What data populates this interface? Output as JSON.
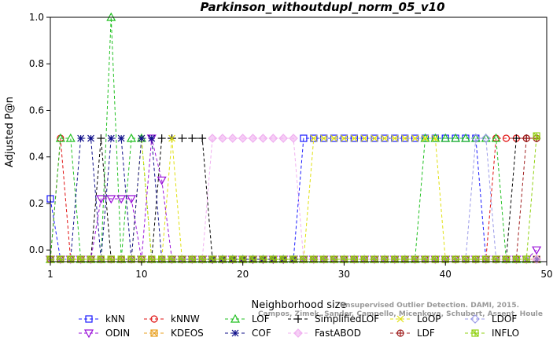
{
  "chart_data": {
    "type": "line",
    "title": "Parkinson_withoutdupl_norm_05_v10",
    "xlabel": "Neighborhood size",
    "ylabel": "Adjusted P@n",
    "xlim": [
      1,
      50
    ],
    "ylim": [
      -0.05,
      1.0
    ],
    "xticks": [
      1,
      10,
      20,
      30,
      40,
      50
    ],
    "yticks": [
      0.0,
      0.2,
      0.4,
      0.6,
      0.8,
      1.0
    ],
    "ytick_labels": [
      "0.0",
      "0.2",
      "0.4",
      "0.6",
      "0.8",
      "1.0"
    ],
    "legend_position": "bottom",
    "x": [
      1,
      2,
      3,
      4,
      5,
      6,
      7,
      8,
      9,
      10,
      11,
      12,
      13,
      14,
      15,
      16,
      17,
      18,
      19,
      20,
      21,
      22,
      23,
      24,
      25,
      26,
      27,
      28,
      29,
      30,
      31,
      32,
      33,
      34,
      35,
      36,
      37,
      38,
      39,
      40,
      41,
      42,
      43,
      44,
      45,
      46,
      47,
      48,
      49
    ],
    "series": [
      {
        "name": "kNN",
        "color": "#1a1aff",
        "marker": "square",
        "values": [
          0.22,
          -0.04,
          -0.04,
          -0.04,
          -0.04,
          -0.04,
          -0.04,
          -0.04,
          -0.04,
          -0.04,
          -0.04,
          -0.04,
          -0.04,
          -0.04,
          -0.04,
          -0.04,
          -0.04,
          -0.04,
          -0.04,
          -0.04,
          -0.04,
          -0.04,
          -0.04,
          -0.04,
          -0.04,
          0.48,
          0.48,
          0.48,
          0.48,
          0.48,
          0.48,
          0.48,
          0.48,
          0.48,
          0.48,
          0.48,
          0.48,
          0.48,
          0.48,
          0.48,
          0.48,
          0.48,
          0.48,
          -0.04,
          -0.04,
          -0.04,
          -0.04,
          -0.04,
          -0.04
        ]
      },
      {
        "name": "kNNW",
        "color": "#e01010",
        "marker": "circle",
        "values": [
          -0.04,
          0.48,
          -0.04,
          -0.04,
          -0.04,
          -0.04,
          -0.04,
          -0.04,
          -0.04,
          -0.04,
          -0.04,
          -0.04,
          -0.04,
          -0.04,
          -0.04,
          -0.04,
          -0.04,
          -0.04,
          -0.04,
          -0.04,
          -0.04,
          -0.04,
          -0.04,
          -0.04,
          -0.04,
          -0.04,
          -0.04,
          -0.04,
          -0.04,
          -0.04,
          -0.04,
          -0.04,
          -0.04,
          -0.04,
          -0.04,
          -0.04,
          -0.04,
          -0.04,
          -0.04,
          -0.04,
          -0.04,
          -0.04,
          -0.04,
          -0.04,
          0.48,
          0.48,
          0.48,
          0.48,
          0.48
        ]
      },
      {
        "name": "LOF",
        "color": "#20c020",
        "marker": "triangle-up",
        "values": [
          -0.04,
          0.48,
          0.48,
          -0.04,
          -0.04,
          -0.04,
          1.0,
          -0.04,
          0.48,
          0.48,
          -0.04,
          -0.04,
          -0.04,
          -0.04,
          -0.04,
          -0.04,
          -0.04,
          -0.04,
          -0.04,
          -0.04,
          -0.04,
          -0.04,
          -0.04,
          -0.04,
          -0.04,
          -0.04,
          -0.04,
          -0.04,
          -0.04,
          -0.04,
          -0.04,
          -0.04,
          -0.04,
          -0.04,
          -0.04,
          -0.04,
          -0.04,
          0.48,
          0.48,
          0.48,
          0.48,
          0.48,
          0.48,
          0.48,
          0.48,
          -0.04,
          -0.04,
          -0.04,
          -0.04
        ]
      },
      {
        "name": "SimplifiedLOF",
        "color": "#000000",
        "marker": "plus",
        "values": [
          -0.04,
          -0.04,
          -0.04,
          -0.04,
          -0.04,
          0.48,
          -0.04,
          -0.04,
          -0.04,
          -0.04,
          -0.04,
          0.48,
          0.48,
          0.48,
          0.48,
          0.48,
          -0.04,
          -0.04,
          -0.04,
          -0.04,
          -0.04,
          -0.04,
          -0.04,
          -0.04,
          -0.04,
          -0.04,
          -0.04,
          -0.04,
          -0.04,
          -0.04,
          -0.04,
          -0.04,
          -0.04,
          -0.04,
          -0.04,
          -0.04,
          -0.04,
          -0.04,
          -0.04,
          -0.04,
          -0.04,
          -0.04,
          -0.04,
          -0.04,
          -0.04,
          -0.04,
          0.48,
          0.48,
          0.48
        ]
      },
      {
        "name": "LoOP",
        "color": "#e0e010",
        "marker": "cross",
        "values": [
          -0.04,
          -0.04,
          -0.04,
          -0.04,
          -0.04,
          -0.04,
          -0.04,
          -0.04,
          -0.04,
          0.48,
          -0.04,
          -0.04,
          0.48,
          -0.04,
          -0.04,
          -0.04,
          -0.04,
          -0.04,
          -0.04,
          -0.04,
          -0.04,
          -0.04,
          -0.04,
          -0.04,
          -0.04,
          -0.04,
          0.48,
          0.48,
          0.48,
          0.48,
          0.48,
          0.48,
          0.48,
          0.48,
          0.48,
          0.48,
          0.48,
          0.48,
          0.48,
          -0.04,
          -0.04,
          -0.04,
          -0.04,
          -0.04,
          -0.04,
          -0.04,
          -0.04,
          -0.04,
          -0.04
        ]
      },
      {
        "name": "LDOF",
        "color": "#9a9ae8",
        "marker": "diamond",
        "values": [
          -0.04,
          -0.04,
          -0.04,
          -0.04,
          -0.04,
          -0.04,
          -0.04,
          -0.04,
          -0.04,
          -0.04,
          -0.04,
          -0.04,
          -0.04,
          -0.04,
          -0.04,
          -0.04,
          -0.04,
          -0.04,
          -0.04,
          -0.04,
          -0.04,
          -0.04,
          -0.04,
          -0.04,
          -0.04,
          -0.04,
          -0.04,
          -0.04,
          -0.04,
          -0.04,
          -0.04,
          -0.04,
          -0.04,
          -0.04,
          -0.04,
          -0.04,
          -0.04,
          -0.04,
          -0.04,
          -0.04,
          -0.04,
          -0.04,
          0.48,
          0.48,
          -0.04,
          -0.04,
          -0.04,
          -0.04,
          -0.04
        ]
      },
      {
        "name": "ODIN",
        "color": "#9a10d8",
        "marker": "triangle-down",
        "values": [
          -0.04,
          -0.04,
          -0.04,
          -0.04,
          -0.04,
          0.22,
          0.22,
          0.22,
          0.22,
          -0.04,
          0.48,
          0.3,
          -0.04,
          -0.04,
          -0.04,
          -0.04,
          -0.04,
          -0.04,
          -0.04,
          -0.04,
          -0.04,
          -0.04,
          -0.04,
          -0.04,
          -0.04,
          -0.04,
          -0.04,
          -0.04,
          -0.04,
          -0.04,
          -0.04,
          -0.04,
          -0.04,
          -0.04,
          -0.04,
          -0.04,
          -0.04,
          -0.04,
          -0.04,
          -0.04,
          -0.04,
          -0.04,
          -0.04,
          -0.04,
          -0.04,
          -0.04,
          -0.04,
          -0.04,
          0.0
        ]
      },
      {
        "name": "KDEOS",
        "color": "#e8a020",
        "marker": "square-x",
        "values": [
          -0.04,
          -0.04,
          -0.04,
          -0.04,
          -0.04,
          -0.04,
          -0.04,
          -0.04,
          -0.04,
          -0.04,
          -0.04,
          -0.04,
          -0.04,
          -0.04,
          -0.04,
          -0.04,
          -0.04,
          -0.04,
          -0.04,
          -0.04,
          -0.04,
          -0.04,
          -0.04,
          -0.04,
          -0.04,
          -0.04,
          -0.04,
          -0.04,
          -0.04,
          -0.04,
          -0.04,
          -0.04,
          -0.04,
          -0.04,
          -0.04,
          -0.04,
          -0.04,
          -0.04,
          -0.04,
          -0.04,
          -0.04,
          -0.04,
          -0.04,
          -0.04,
          -0.04,
          -0.04,
          -0.04,
          -0.04,
          -0.04
        ]
      },
      {
        "name": "COF",
        "color": "#10108a",
        "marker": "asterisk",
        "values": [
          -0.04,
          -0.04,
          -0.04,
          0.48,
          0.48,
          -0.04,
          0.48,
          0.48,
          -0.04,
          0.48,
          0.48,
          -0.04,
          -0.04,
          -0.04,
          -0.04,
          -0.04,
          -0.04,
          -0.04,
          -0.04,
          -0.04,
          -0.04,
          -0.04,
          -0.04,
          -0.04,
          -0.04,
          -0.04,
          -0.04,
          -0.04,
          -0.04,
          -0.04,
          -0.04,
          -0.04,
          -0.04,
          -0.04,
          -0.04,
          -0.04,
          -0.04,
          -0.04,
          -0.04,
          -0.04,
          -0.04,
          -0.04,
          -0.04,
          -0.04,
          -0.04,
          -0.04,
          -0.04,
          -0.04,
          -0.04
        ]
      },
      {
        "name": "FastABOD",
        "color": "#f0b0f0",
        "marker": "diamond-filled",
        "values": [
          -0.04,
          -0.04,
          -0.04,
          -0.04,
          -0.04,
          -0.04,
          -0.04,
          -0.04,
          -0.04,
          -0.04,
          -0.04,
          -0.04,
          -0.04,
          -0.04,
          -0.04,
          -0.04,
          0.48,
          0.48,
          0.48,
          0.48,
          0.48,
          0.48,
          0.48,
          0.48,
          0.48,
          -0.04,
          -0.04,
          -0.04,
          -0.04,
          -0.04,
          -0.04,
          -0.04,
          -0.04,
          -0.04,
          -0.04,
          -0.04,
          -0.04,
          -0.04,
          -0.04,
          -0.04,
          -0.04,
          -0.04,
          -0.04,
          -0.04,
          -0.04,
          -0.04,
          -0.04,
          -0.04,
          -0.04
        ]
      },
      {
        "name": "LDF",
        "color": "#a02020",
        "marker": "circle-plus",
        "values": [
          -0.04,
          -0.04,
          -0.04,
          -0.04,
          -0.04,
          -0.04,
          -0.04,
          -0.04,
          -0.04,
          -0.04,
          -0.04,
          -0.04,
          -0.04,
          -0.04,
          -0.04,
          -0.04,
          -0.04,
          -0.04,
          -0.04,
          -0.04,
          -0.04,
          -0.04,
          -0.04,
          -0.04,
          -0.04,
          -0.04,
          -0.04,
          -0.04,
          -0.04,
          -0.04,
          -0.04,
          -0.04,
          -0.04,
          -0.04,
          -0.04,
          -0.04,
          -0.04,
          -0.04,
          -0.04,
          -0.04,
          -0.04,
          -0.04,
          -0.04,
          -0.04,
          -0.04,
          -0.04,
          -0.04,
          0.48,
          0.48
        ]
      },
      {
        "name": "INFLO",
        "color": "#90d010",
        "marker": "square-star",
        "values": [
          -0.04,
          -0.04,
          -0.04,
          -0.04,
          -0.04,
          -0.04,
          -0.04,
          -0.04,
          -0.04,
          -0.04,
          -0.04,
          -0.04,
          -0.04,
          -0.04,
          -0.04,
          -0.04,
          -0.04,
          -0.04,
          -0.04,
          -0.04,
          -0.04,
          -0.04,
          -0.04,
          -0.04,
          -0.04,
          -0.04,
          -0.04,
          -0.04,
          -0.04,
          -0.04,
          -0.04,
          -0.04,
          -0.04,
          -0.04,
          -0.04,
          -0.04,
          -0.04,
          -0.04,
          -0.04,
          -0.04,
          -0.04,
          -0.04,
          -0.04,
          -0.04,
          -0.04,
          -0.04,
          -0.04,
          -0.04,
          0.49
        ]
      }
    ],
    "watermark_lines": [
      "Unsupervised Outlier Detection. DAMI, 2015.",
      "Campos, Zimek, Sander, Campello, Micenkova, Schubert, Assent, Houle"
    ]
  }
}
